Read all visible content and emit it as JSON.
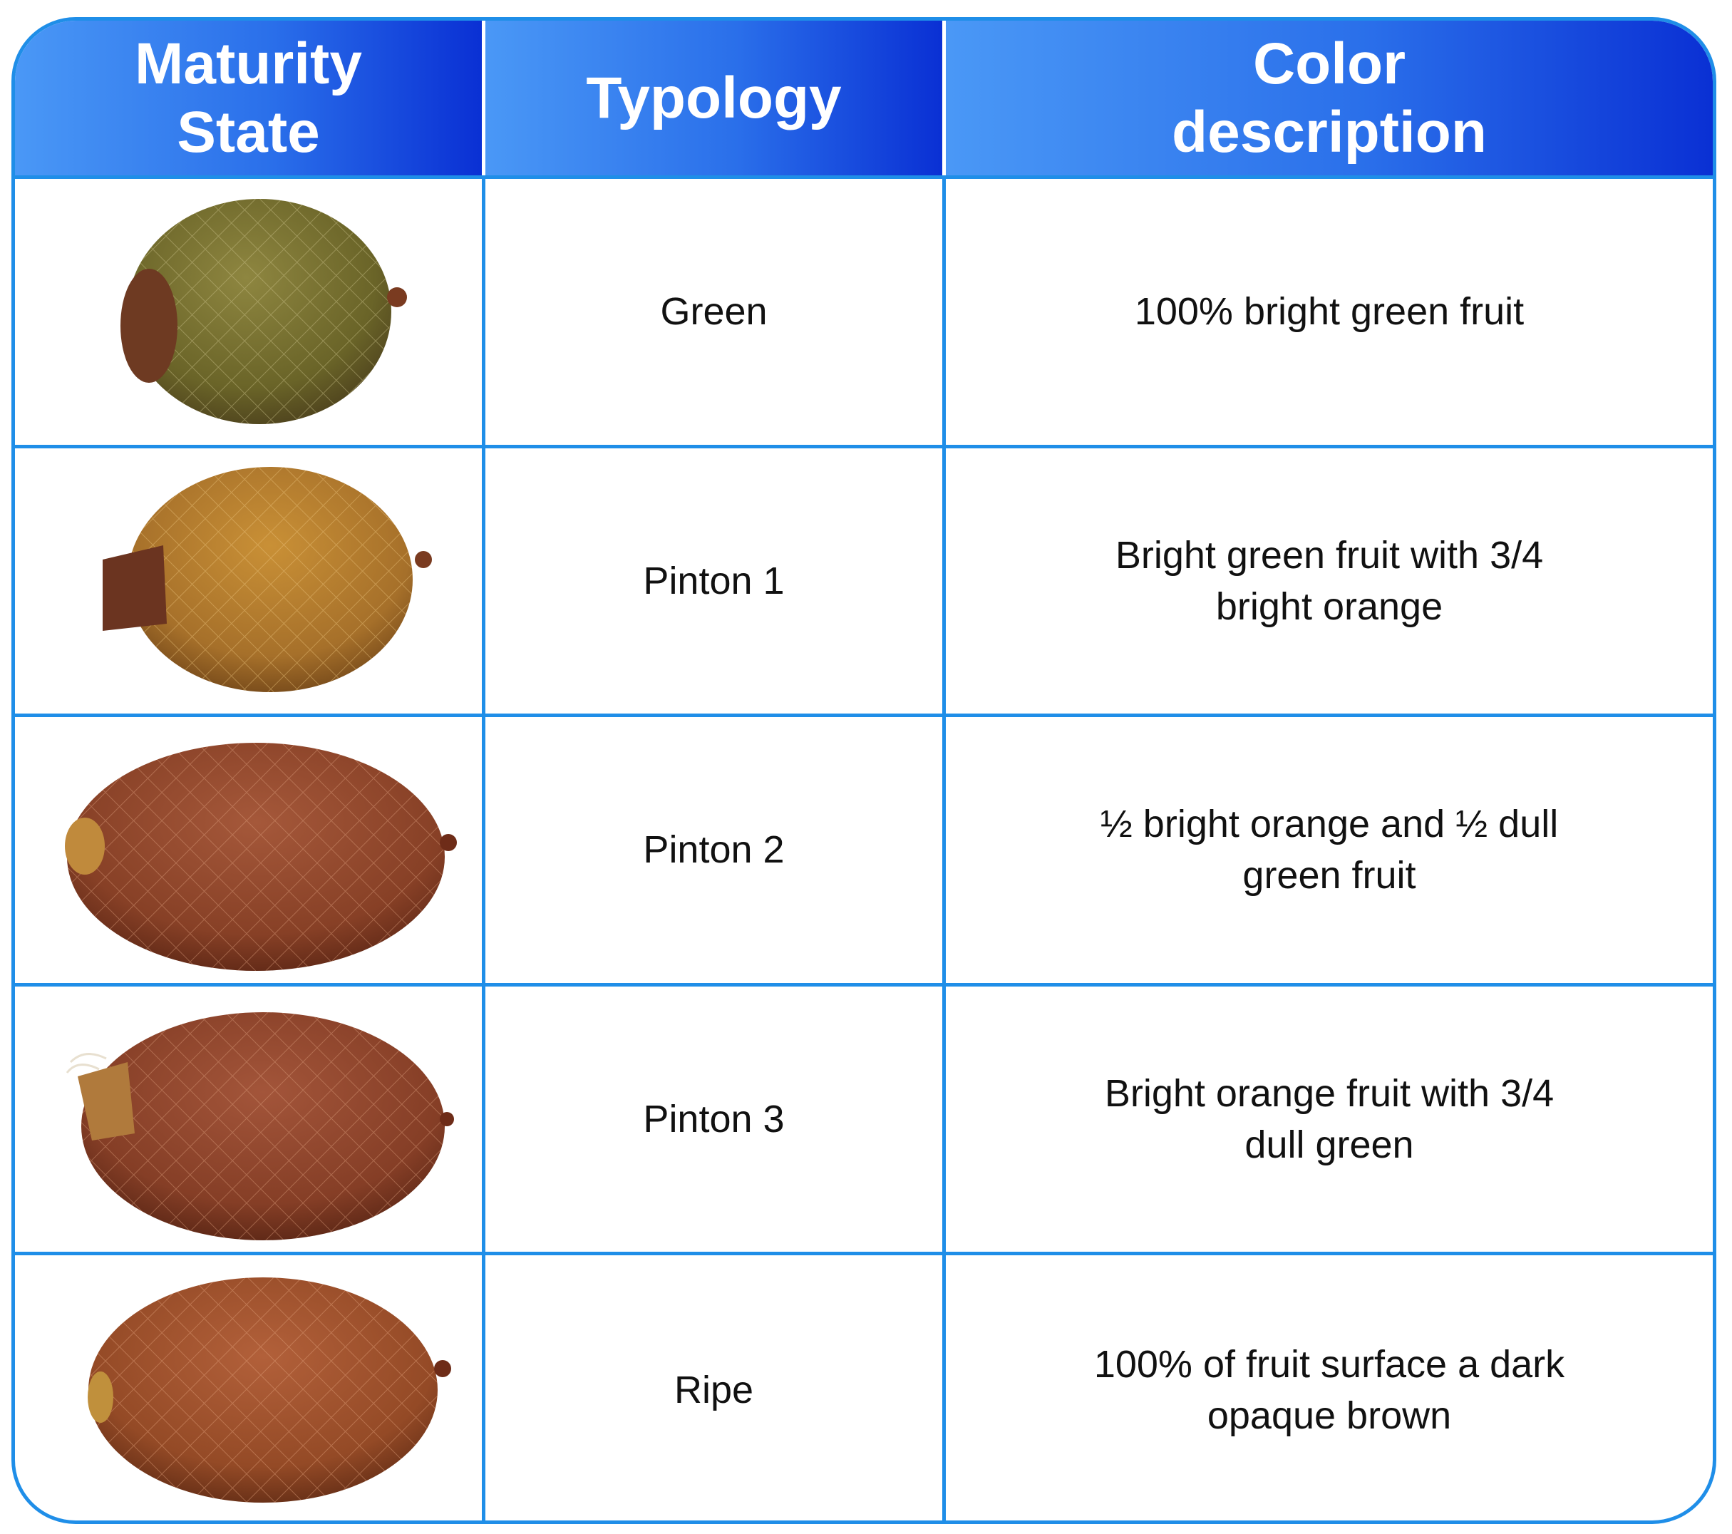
{
  "colors": {
    "border": "#1f8ee8",
    "header_gradient": [
      "#4a98f6",
      "#0a30d4"
    ],
    "header_text": "#ffffff"
  },
  "header": {
    "maturity_state": "Maturity\nState",
    "typology": "Typology",
    "color_description": "Color\ndescription"
  },
  "rows": [
    {
      "image": "green-fruit-image",
      "fruit_color": "#6e6b2c",
      "typology": "Green",
      "color_description": "100% bright green fruit"
    },
    {
      "image": "pinton-1-fruit-image",
      "fruit_color": "#b07a2a",
      "typology": "Pinton 1",
      "color_description": "Bright green fruit with 3/4\nbright orange"
    },
    {
      "image": "pinton-2-fruit-image",
      "fruit_color": "#8a4326",
      "typology": "Pinton 2",
      "color_description": "½  bright orange and ½ dull\ngreen fruit"
    },
    {
      "image": "pinton-3-fruit-image",
      "fruit_color": "#8a3f26",
      "typology": "Pinton 3",
      "color_description": "Bright orange fruit with 3/4\ndull green"
    },
    {
      "image": "ripe-fruit-image",
      "fruit_color": "#9a4a24",
      "typology": "Ripe",
      "color_description": "100% of fruit surface a dark\nopaque brown"
    }
  ]
}
